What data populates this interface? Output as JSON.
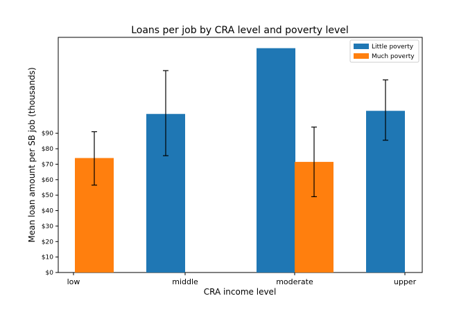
{
  "chart_data": {
    "type": "bar",
    "title": "Loans per job by CRA level and poverty level",
    "xlabel": "CRA income level",
    "ylabel": "Mean loan amount per SB job (thousands)",
    "categories": [
      "low",
      "middle",
      "moderate",
      "upper"
    ],
    "y_ticks": [
      0,
      10,
      20,
      30,
      40,
      50,
      60,
      70,
      80,
      90
    ],
    "y_tick_labels": [
      "$0",
      "$10",
      "$20",
      "$30",
      "$40",
      "$50",
      "$60",
      "$70",
      "$80",
      "$90"
    ],
    "ylim": [
      0,
      152
    ],
    "series": [
      {
        "name": "Little poverty",
        "color": "#1f77b4",
        "values": [
          null,
          102.5,
          145,
          104.5
        ],
        "err_low": [
          null,
          75.5,
          null,
          85.5
        ],
        "err_high": [
          null,
          130.5,
          null,
          124.5
        ]
      },
      {
        "name": "Much poverty",
        "color": "#ff7f0e",
        "values": [
          74,
          null,
          71.5,
          null
        ],
        "err_low": [
          56.5,
          null,
          49,
          null
        ],
        "err_high": [
          91,
          null,
          94,
          null
        ]
      }
    ],
    "legend_position": "top-right",
    "grid": false
  }
}
